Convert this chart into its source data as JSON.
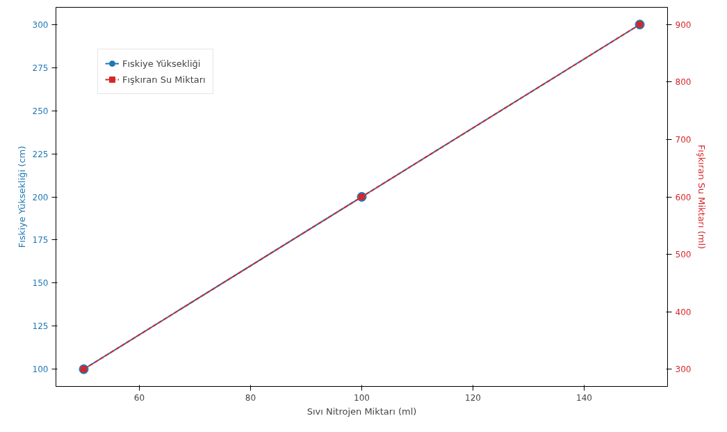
{
  "chart_data": {
    "type": "line",
    "xlabel": "Sıvı Nitrojen Miktarı (ml)",
    "ylabel": "Fıskiye Yüksekliği (cm)",
    "y2label": "Fışkıran Su Miktarı (ml)",
    "x": [
      50,
      100,
      150
    ],
    "series": [
      {
        "name": "Fıskiye Yüksekliği",
        "color": "#1f77b4",
        "values": [
          100,
          200,
          300
        ],
        "marker": "circle",
        "line_style": "solid"
      },
      {
        "name": "Fışkıran Su Miktarı",
        "color": "#d62728",
        "values": [
          300,
          600,
          900
        ],
        "marker": "square",
        "line_style": "dashed",
        "axis": "y2"
      }
    ],
    "xlim": [
      45,
      155
    ],
    "xticks": [
      60,
      80,
      100,
      120,
      140
    ],
    "ylim": [
      90,
      310
    ],
    "yticks": [
      100,
      125,
      150,
      175,
      200,
      225,
      250,
      275,
      300
    ],
    "y2lim": [
      270,
      930
    ],
    "y2ticks": [
      300,
      400,
      500,
      600,
      700,
      800,
      900
    ],
    "grid": false,
    "legend": "top left"
  }
}
